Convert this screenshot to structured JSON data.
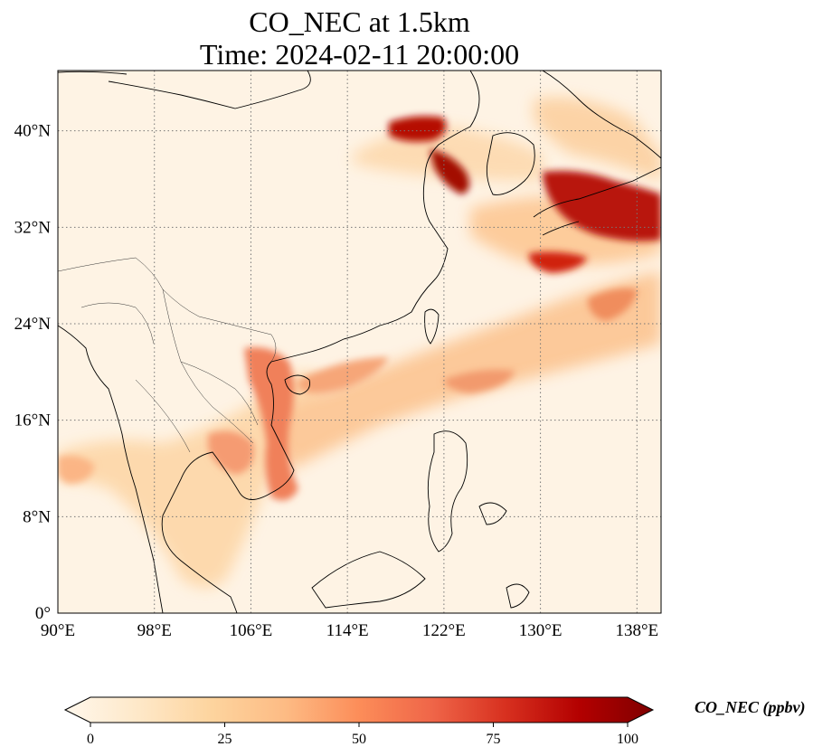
{
  "title": {
    "line1": "CO_NEC at 1.5km",
    "line2": "Time: 2024-02-11 20:00:00"
  },
  "map": {
    "projection": "PlateCarree",
    "lon_range": [
      90,
      140
    ],
    "lat_range": [
      0,
      45
    ],
    "lon_ticks": [
      "90°E",
      "98°E",
      "106°E",
      "114°E",
      "122°E",
      "130°E",
      "138°E"
    ],
    "lon_tick_values": [
      90,
      98,
      106,
      114,
      122,
      130,
      138
    ],
    "lat_ticks": [
      "0°",
      "8°N",
      "16°N",
      "24°N",
      "32°N",
      "40°N"
    ],
    "lat_tick_values": [
      0,
      8,
      16,
      24,
      32,
      40
    ],
    "gridlines": "dotted",
    "coastlines": true,
    "borders": true,
    "colormap": "OrRd",
    "colormap_stops": [
      "#fff7ec",
      "#fee8c8",
      "#fdd49e",
      "#fdbb84",
      "#fc8d59",
      "#ef6548",
      "#d7301f",
      "#b30000",
      "#7f0000"
    ]
  },
  "colorbar": {
    "label": "CO_NEC (ppbv)",
    "min": 0,
    "max": 100,
    "ticks": [
      "0",
      "25",
      "50",
      "75",
      "100"
    ],
    "tick_values": [
      0,
      25,
      50,
      75,
      100
    ],
    "extend": "both",
    "orientation": "horizontal"
  }
}
